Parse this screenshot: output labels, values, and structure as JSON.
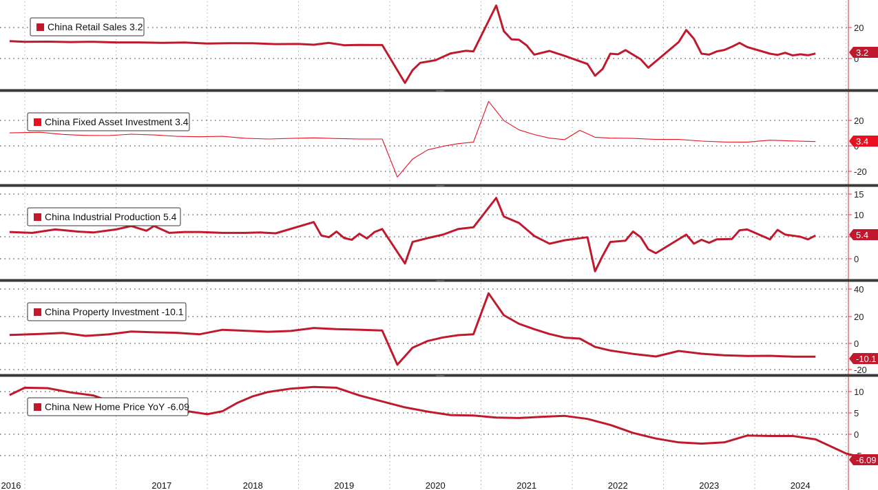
{
  "chart_data": [
    {
      "type": "line",
      "series_name": "China Retail Sales",
      "last_value_label": "3.2",
      "color": "#C0192E",
      "yticks": [
        "20",
        "0"
      ],
      "ylim": [
        -20,
        40
      ],
      "points": [
        [
          "2015-11",
          11.2
        ],
        [
          "2016-01",
          10.8
        ],
        [
          "2016-04",
          10.9
        ],
        [
          "2016-07",
          10.6
        ],
        [
          "2016-10",
          10.8
        ],
        [
          "2017-01",
          10.4
        ],
        [
          "2017-04",
          10.4
        ],
        [
          "2017-07",
          10.1
        ],
        [
          "2017-10",
          10.3
        ],
        [
          "2018-01",
          9.7
        ],
        [
          "2018-04",
          9.9
        ],
        [
          "2018-07",
          9.8
        ],
        [
          "2018-10",
          9.3
        ],
        [
          "2019-01",
          9.4
        ],
        [
          "2019-03",
          8.9
        ],
        [
          "2019-05",
          10.1
        ],
        [
          "2019-07",
          8.6
        ],
        [
          "2019-09",
          8.8
        ],
        [
          "2019-11",
          8.7
        ],
        [
          "2019-12",
          8.7
        ],
        [
          "2020-03",
          -15.8
        ],
        [
          "2020-04",
          -7.5
        ],
        [
          "2020-05",
          -2.8
        ],
        [
          "2020-07",
          -1.1
        ],
        [
          "2020-09",
          3.3
        ],
        [
          "2020-11",
          5.0
        ],
        [
          "2020-12",
          4.6
        ],
        [
          "2021-03",
          34.2
        ],
        [
          "2021-04",
          17.7
        ],
        [
          "2021-05",
          12.4
        ],
        [
          "2021-06",
          12.1
        ],
        [
          "2021-07",
          8.5
        ],
        [
          "2021-08",
          2.5
        ],
        [
          "2021-10",
          4.9
        ],
        [
          "2021-12",
          1.7
        ],
        [
          "2022-03",
          -3.5
        ],
        [
          "2022-04",
          -11.1
        ],
        [
          "2022-05",
          -6.7
        ],
        [
          "2022-06",
          3.1
        ],
        [
          "2022-07",
          2.7
        ],
        [
          "2022-08",
          5.4
        ],
        [
          "2022-10",
          -0.5
        ],
        [
          "2022-11",
          -5.9
        ],
        [
          "2023-03",
          10.6
        ],
        [
          "2023-04",
          18.4
        ],
        [
          "2023-05",
          12.7
        ],
        [
          "2023-06",
          3.1
        ],
        [
          "2023-07",
          2.5
        ],
        [
          "2023-08",
          4.6
        ],
        [
          "2023-09",
          5.5
        ],
        [
          "2023-10",
          7.6
        ],
        [
          "2023-11",
          10.1
        ],
        [
          "2023-12",
          7.4
        ],
        [
          "2024-03",
          3.1
        ],
        [
          "2024-04",
          2.3
        ],
        [
          "2024-05",
          3.7
        ],
        [
          "2024-06",
          2.0
        ],
        [
          "2024-07",
          2.7
        ],
        [
          "2024-08",
          2.1
        ],
        [
          "2024-09",
          3.2
        ]
      ]
    },
    {
      "type": "line",
      "series_name": "China Fixed Asset Investment",
      "last_value_label": "3.4",
      "color": "#E8101E",
      "yticks": [
        "20",
        "0",
        "-20"
      ],
      "ylim": [
        -30,
        40
      ],
      "points": [
        [
          "2015-11",
          10.2
        ],
        [
          "2016-03",
          10.7
        ],
        [
          "2016-06",
          9.0
        ],
        [
          "2016-09",
          8.2
        ],
        [
          "2016-12",
          8.1
        ],
        [
          "2017-03",
          9.2
        ],
        [
          "2017-06",
          8.6
        ],
        [
          "2017-09",
          7.5
        ],
        [
          "2017-12",
          7.2
        ],
        [
          "2018-03",
          7.5
        ],
        [
          "2018-06",
          6.0
        ],
        [
          "2018-09",
          5.4
        ],
        [
          "2018-12",
          5.9
        ],
        [
          "2019-03",
          6.3
        ],
        [
          "2019-06",
          5.8
        ],
        [
          "2019-09",
          5.4
        ],
        [
          "2019-12",
          5.4
        ],
        [
          "2020-02",
          -24.5
        ],
        [
          "2020-04",
          -10.3
        ],
        [
          "2020-06",
          -3.1
        ],
        [
          "2020-08",
          -0.3
        ],
        [
          "2020-10",
          1.8
        ],
        [
          "2020-12",
          2.9
        ],
        [
          "2021-02",
          35.0
        ],
        [
          "2021-04",
          19.9
        ],
        [
          "2021-06",
          12.6
        ],
        [
          "2021-08",
          8.9
        ],
        [
          "2021-10",
          6.1
        ],
        [
          "2021-12",
          4.9
        ],
        [
          "2022-02",
          12.2
        ],
        [
          "2022-04",
          6.8
        ],
        [
          "2022-06",
          6.1
        ],
        [
          "2022-09",
          5.9
        ],
        [
          "2022-12",
          5.1
        ],
        [
          "2023-03",
          5.1
        ],
        [
          "2023-06",
          3.8
        ],
        [
          "2023-09",
          3.1
        ],
        [
          "2023-12",
          3.0
        ],
        [
          "2024-03",
          4.5
        ],
        [
          "2024-06",
          3.9
        ],
        [
          "2024-09",
          3.4
        ]
      ]
    },
    {
      "type": "line",
      "series_name": "China Industrial Production",
      "last_value_label": "5.4",
      "color": "#C0192E",
      "yticks": [
        "15",
        "10",
        "5",
        "0"
      ],
      "ylim": [
        -5,
        16
      ],
      "points": [
        [
          "2015-11",
          6.2
        ],
        [
          "2016-02",
          6.0
        ],
        [
          "2016-05",
          6.8
        ],
        [
          "2016-08",
          6.3
        ],
        [
          "2016-10",
          6.1
        ],
        [
          "2017-01",
          6.8
        ],
        [
          "2017-03",
          7.6
        ],
        [
          "2017-05",
          6.5
        ],
        [
          "2017-06",
          7.6
        ],
        [
          "2017-08",
          6.0
        ],
        [
          "2017-10",
          6.2
        ],
        [
          "2017-12",
          6.2
        ],
        [
          "2018-03",
          6.0
        ],
        [
          "2018-06",
          6.0
        ],
        [
          "2018-08",
          6.1
        ],
        [
          "2018-10",
          5.9
        ],
        [
          "2019-03",
          8.5
        ],
        [
          "2019-04",
          5.4
        ],
        [
          "2019-05",
          5.0
        ],
        [
          "2019-06",
          6.3
        ],
        [
          "2019-07",
          4.8
        ],
        [
          "2019-08",
          4.4
        ],
        [
          "2019-09",
          5.8
        ],
        [
          "2019-10",
          4.7
        ],
        [
          "2019-11",
          6.2
        ],
        [
          "2019-12",
          6.9
        ],
        [
          "2020-03",
          -1.1
        ],
        [
          "2020-04",
          3.9
        ],
        [
          "2020-06",
          4.8
        ],
        [
          "2020-08",
          5.6
        ],
        [
          "2020-10",
          6.9
        ],
        [
          "2020-12",
          7.3
        ],
        [
          "2021-03",
          14.1
        ],
        [
          "2021-04",
          9.8
        ],
        [
          "2021-06",
          8.3
        ],
        [
          "2021-08",
          5.3
        ],
        [
          "2021-10",
          3.5
        ],
        [
          "2021-12",
          4.3
        ],
        [
          "2022-03",
          5.0
        ],
        [
          "2022-04",
          -2.9
        ],
        [
          "2022-05",
          0.7
        ],
        [
          "2022-06",
          3.9
        ],
        [
          "2022-08",
          4.2
        ],
        [
          "2022-09",
          6.3
        ],
        [
          "2022-10",
          5.0
        ],
        [
          "2022-11",
          2.2
        ],
        [
          "2022-12",
          1.3
        ],
        [
          "2023-04",
          5.6
        ],
        [
          "2023-05",
          3.5
        ],
        [
          "2023-06",
          4.4
        ],
        [
          "2023-07",
          3.7
        ],
        [
          "2023-08",
          4.5
        ],
        [
          "2023-10",
          4.6
        ],
        [
          "2023-11",
          6.6
        ],
        [
          "2023-12",
          6.8
        ],
        [
          "2024-03",
          4.5
        ],
        [
          "2024-04",
          6.7
        ],
        [
          "2024-05",
          5.6
        ],
        [
          "2024-07",
          5.1
        ],
        [
          "2024-08",
          4.5
        ],
        [
          "2024-09",
          5.4
        ]
      ]
    },
    {
      "type": "line",
      "series_name": "China Property Investment",
      "last_value_label": "-10.1",
      "color": "#C0192E",
      "yticks": [
        "40",
        "20",
        "0",
        "-20"
      ],
      "ylim": [
        -25,
        45
      ],
      "points": [
        [
          "2015-11",
          6.4
        ],
        [
          "2016-03",
          7.2
        ],
        [
          "2016-06",
          8.0
        ],
        [
          "2016-09",
          5.8
        ],
        [
          "2016-12",
          6.9
        ],
        [
          "2017-03",
          9.1
        ],
        [
          "2017-06",
          8.5
        ],
        [
          "2017-09",
          8.1
        ],
        [
          "2017-12",
          7.0
        ],
        [
          "2018-03",
          10.4
        ],
        [
          "2018-06",
          9.7
        ],
        [
          "2018-09",
          8.9
        ],
        [
          "2018-12",
          9.5
        ],
        [
          "2019-03",
          11.8
        ],
        [
          "2019-06",
          10.9
        ],
        [
          "2019-09",
          10.5
        ],
        [
          "2019-12",
          9.9
        ],
        [
          "2020-02",
          -16.3
        ],
        [
          "2020-04",
          -3.3
        ],
        [
          "2020-06",
          1.9
        ],
        [
          "2020-08",
          4.6
        ],
        [
          "2020-10",
          6.3
        ],
        [
          "2020-12",
          7.0
        ],
        [
          "2021-02",
          38.3
        ],
        [
          "2021-04",
          21.6
        ],
        [
          "2021-06",
          15.0
        ],
        [
          "2021-08",
          10.9
        ],
        [
          "2021-10",
          7.2
        ],
        [
          "2021-12",
          4.4
        ],
        [
          "2022-02",
          3.7
        ],
        [
          "2022-04",
          -2.7
        ],
        [
          "2022-06",
          -5.4
        ],
        [
          "2022-09",
          -8.0
        ],
        [
          "2022-12",
          -10.0
        ],
        [
          "2023-03",
          -5.8
        ],
        [
          "2023-06",
          -7.9
        ],
        [
          "2023-09",
          -9.1
        ],
        [
          "2023-12",
          -9.6
        ],
        [
          "2024-03",
          -9.5
        ],
        [
          "2024-06",
          -10.1
        ],
        [
          "2024-09",
          -10.1
        ]
      ]
    },
    {
      "type": "line",
      "series_name": "China New Home Price YoY",
      "last_value_label": "-6.09",
      "color": "#C0192E",
      "yticks": [
        "10",
        "5",
        "0",
        "-5"
      ],
      "ylim": [
        -7,
        13
      ],
      "points": [
        [
          "2015-11",
          9.2
        ],
        [
          "2016-01",
          10.9
        ],
        [
          "2016-04",
          10.8
        ],
        [
          "2016-07",
          9.8
        ],
        [
          "2016-10",
          9.1
        ],
        [
          "2017-01",
          7.2
        ],
        [
          "2017-04",
          6.4
        ],
        [
          "2017-07",
          5.8
        ],
        [
          "2017-10",
          5.5
        ],
        [
          "2018-01",
          4.7
        ],
        [
          "2018-03",
          5.4
        ],
        [
          "2018-05",
          7.4
        ],
        [
          "2018-07",
          8.9
        ],
        [
          "2018-09",
          9.9
        ],
        [
          "2018-12",
          10.7
        ],
        [
          "2019-03",
          11.1
        ],
        [
          "2019-06",
          10.9
        ],
        [
          "2019-09",
          9.1
        ],
        [
          "2019-12",
          7.7
        ],
        [
          "2020-03",
          6.3
        ],
        [
          "2020-06",
          5.3
        ],
        [
          "2020-09",
          4.5
        ],
        [
          "2020-12",
          4.4
        ],
        [
          "2021-03",
          3.9
        ],
        [
          "2021-06",
          3.8
        ],
        [
          "2021-09",
          4.1
        ],
        [
          "2021-12",
          4.3
        ],
        [
          "2022-03",
          3.6
        ],
        [
          "2022-06",
          2.2
        ],
        [
          "2022-09",
          0.3
        ],
        [
          "2022-12",
          -1.0
        ],
        [
          "2023-03",
          -1.9
        ],
        [
          "2023-06",
          -2.2
        ],
        [
          "2023-09",
          -1.9
        ],
        [
          "2023-12",
          -0.3
        ],
        [
          "2024-03",
          -0.4
        ],
        [
          "2024-06",
          -0.4
        ],
        [
          "2024-09",
          -1.2
        ],
        [
          "2025-01",
          -4.5
        ],
        [
          "2025-04",
          -5.8
        ],
        [
          "2025-07",
          -6.09
        ]
      ]
    }
  ],
  "x_axis": {
    "year_labels": [
      "2016",
      "2017",
      "2018",
      "2019",
      "2020",
      "2021",
      "2022",
      "2023",
      "2024"
    ],
    "year_starts": [
      2016,
      2017,
      2018,
      2019,
      2020,
      2021,
      2022,
      2023,
      2024,
      2025
    ],
    "xlim": [
      "2015-11",
      "2025-10"
    ],
    "grid": true
  }
}
